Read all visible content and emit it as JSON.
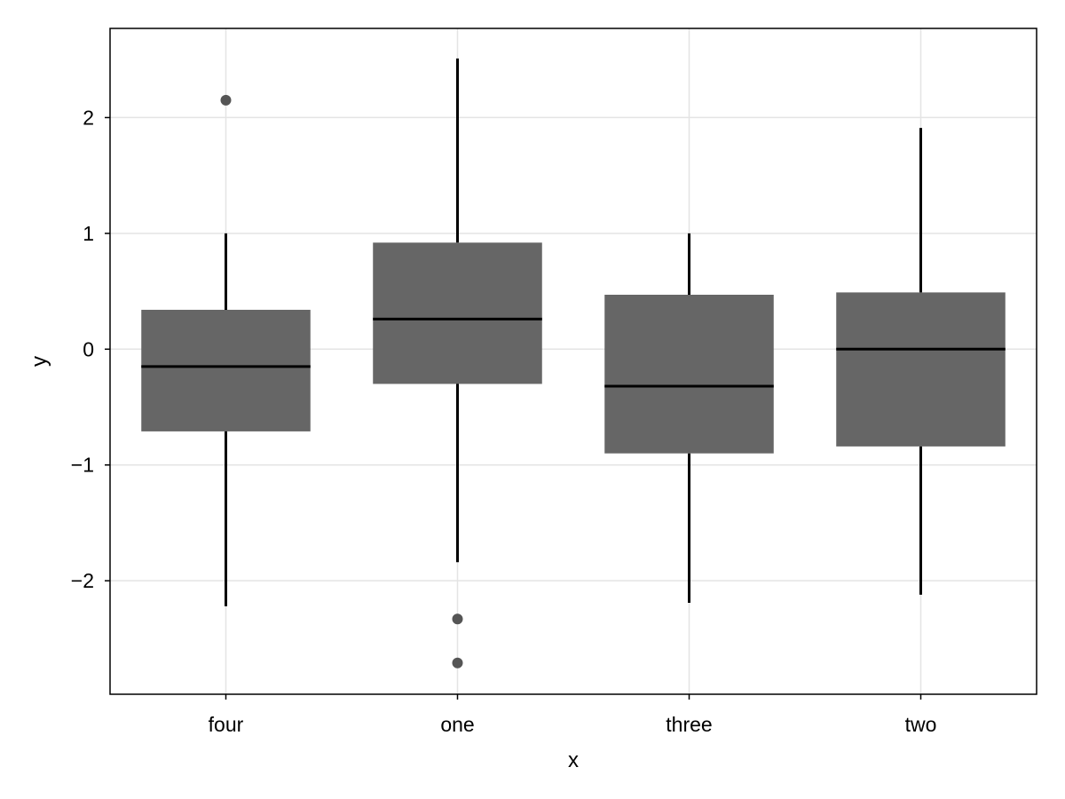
{
  "chart_data": {
    "type": "box",
    "xlabel": "x",
    "ylabel": "y",
    "ylim": [
      -2.98,
      2.77
    ],
    "grid": true,
    "yticks": [
      {
        "value": -2,
        "label": "−2"
      },
      {
        "value": -1,
        "label": "−1"
      },
      {
        "value": 0,
        "label": "0"
      },
      {
        "value": 1,
        "label": "1"
      },
      {
        "value": 2,
        "label": "2"
      }
    ],
    "categories": [
      "four",
      "one",
      "three",
      "two"
    ],
    "boxes": [
      {
        "category": "four",
        "whisker_low": -2.22,
        "q1": -0.71,
        "median": -0.15,
        "q3": 0.34,
        "whisker_high": 1.0,
        "outliers": [
          2.15
        ]
      },
      {
        "category": "one",
        "whisker_low": -1.84,
        "q1": -0.3,
        "median": 0.26,
        "q3": 0.92,
        "whisker_high": 2.51,
        "outliers": [
          -2.33,
          -2.71
        ]
      },
      {
        "category": "three",
        "whisker_low": -2.19,
        "q1": -0.9,
        "median": -0.32,
        "q3": 0.47,
        "whisker_high": 1.0,
        "outliers": []
      },
      {
        "category": "two",
        "whisker_low": -2.12,
        "q1": -0.84,
        "median": 0.0,
        "q3": 0.49,
        "whisker_high": 1.91,
        "outliers": []
      }
    ],
    "colors": {
      "box_fill": "#666666",
      "whisker": "#000000",
      "median": "#000000",
      "outlier": "#555555",
      "grid": "#e4e4e4",
      "frame": "#000000"
    }
  }
}
